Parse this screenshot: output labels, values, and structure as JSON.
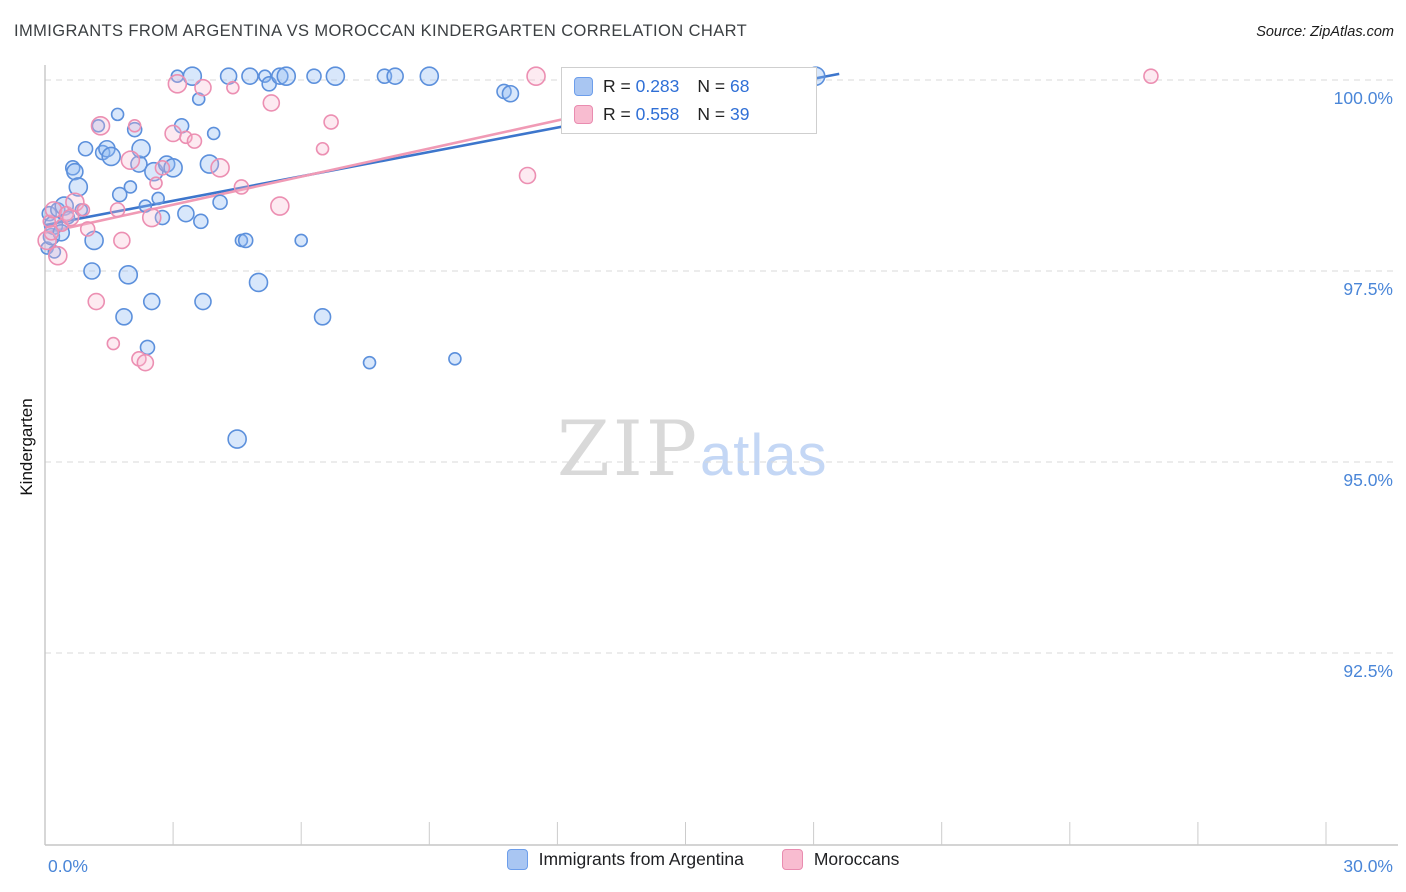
{
  "header": {
    "title": "IMMIGRANTS FROM ARGENTINA VS MOROCCAN KINDERGARTEN CORRELATION CHART",
    "source": "Source: ZipAtlas.com"
  },
  "watermark": {
    "zip": "ZIP",
    "atlas": "atlas"
  },
  "axes": {
    "y_label": "Kindergarten",
    "y_ticks": [
      "100.0%",
      "97.5%",
      "95.0%",
      "92.5%"
    ],
    "x_min_label": "0.0%",
    "x_max_label": "30.0%"
  },
  "legend_box": {
    "series": [
      {
        "r_label": "R = ",
        "r": "0.283",
        "n_label": "N = ",
        "n": "68",
        "color": "#a9c6f2"
      },
      {
        "r_label": "R = ",
        "r": "0.558",
        "n_label": "N = ",
        "n": "39",
        "color": "#f8bcd0"
      }
    ]
  },
  "bottom_legend": [
    {
      "label": "Immigrants from Argentina",
      "color": "#a9c6f2"
    },
    {
      "label": "Moroccans",
      "color": "#f8bcd0"
    }
  ],
  "chart_data": {
    "type": "scatter",
    "title": "IMMIGRANTS FROM ARGENTINA VS MOROCCAN KINDERGARTEN CORRELATION CHART",
    "xlabel": "",
    "ylabel": "Kindergarten",
    "x_range": [
      0,
      30
    ],
    "y_range": [
      90,
      100.3
    ],
    "y_gridlines": [
      100.0,
      97.5,
      95.0,
      92.5
    ],
    "x_tick_values": [
      3,
      6,
      9,
      12,
      15,
      18,
      21,
      24,
      27,
      30
    ],
    "grid": "dashed-horizontal",
    "legend_position": "bottom-center",
    "series": [
      {
        "name": "Immigrants from Argentina",
        "R": 0.283,
        "N": 68,
        "color": "#5c90dc",
        "points": [
          [
            0.05,
            97.8
          ],
          [
            0.1,
            98.25
          ],
          [
            0.15,
            97.95
          ],
          [
            0.2,
            98.1
          ],
          [
            0.22,
            97.75
          ],
          [
            0.3,
            98.3
          ],
          [
            0.38,
            98.0
          ],
          [
            0.45,
            98.35
          ],
          [
            0.55,
            98.2
          ],
          [
            0.65,
            98.85
          ],
          [
            0.7,
            98.8
          ],
          [
            0.78,
            98.6
          ],
          [
            0.85,
            98.3
          ],
          [
            0.95,
            99.1
          ],
          [
            1.1,
            97.5
          ],
          [
            1.15,
            97.9
          ],
          [
            1.25,
            99.4
          ],
          [
            1.35,
            99.05
          ],
          [
            1.45,
            99.1
          ],
          [
            1.55,
            99.0
          ],
          [
            1.7,
            99.55
          ],
          [
            1.75,
            98.5
          ],
          [
            1.85,
            96.9
          ],
          [
            1.95,
            97.45
          ],
          [
            2.0,
            98.6
          ],
          [
            2.1,
            99.35
          ],
          [
            2.2,
            98.9
          ],
          [
            2.25,
            99.1
          ],
          [
            2.35,
            98.35
          ],
          [
            2.4,
            96.5
          ],
          [
            2.5,
            97.1
          ],
          [
            2.55,
            98.8
          ],
          [
            2.65,
            98.45
          ],
          [
            2.75,
            98.2
          ],
          [
            2.85,
            98.9
          ],
          [
            3.0,
            98.85
          ],
          [
            3.1,
            100.05
          ],
          [
            3.2,
            99.4
          ],
          [
            3.3,
            98.25
          ],
          [
            3.45,
            100.05
          ],
          [
            3.6,
            99.75
          ],
          [
            3.65,
            98.15
          ],
          [
            3.7,
            97.1
          ],
          [
            3.85,
            98.9
          ],
          [
            3.95,
            99.3
          ],
          [
            4.1,
            98.4
          ],
          [
            4.3,
            100.05
          ],
          [
            4.5,
            95.3
          ],
          [
            4.6,
            97.9
          ],
          [
            4.7,
            97.9
          ],
          [
            4.8,
            100.05
          ],
          [
            5.0,
            97.35
          ],
          [
            5.15,
            100.05
          ],
          [
            5.25,
            99.95
          ],
          [
            5.5,
            100.05
          ],
          [
            5.65,
            100.05
          ],
          [
            6.0,
            97.9
          ],
          [
            6.3,
            100.05
          ],
          [
            6.5,
            96.9
          ],
          [
            6.8,
            100.05
          ],
          [
            7.6,
            96.3
          ],
          [
            7.95,
            100.05
          ],
          [
            8.2,
            100.05
          ],
          [
            9.0,
            100.05
          ],
          [
            9.6,
            96.35
          ],
          [
            10.75,
            99.85
          ],
          [
            10.9,
            99.82
          ],
          [
            18.05,
            100.05
          ]
        ]
      },
      {
        "name": "Moroccans",
        "R": 0.558,
        "N": 39,
        "color": "#ec8fb2",
        "points": [
          [
            0.05,
            97.9
          ],
          [
            0.1,
            98.15
          ],
          [
            0.15,
            98.0
          ],
          [
            0.2,
            98.3
          ],
          [
            0.3,
            97.7
          ],
          [
            0.4,
            98.1
          ],
          [
            0.5,
            98.25
          ],
          [
            0.6,
            98.2
          ],
          [
            0.7,
            98.4
          ],
          [
            0.9,
            98.3
          ],
          [
            1.0,
            98.05
          ],
          [
            1.2,
            97.1
          ],
          [
            1.3,
            99.4
          ],
          [
            1.6,
            96.55
          ],
          [
            1.7,
            98.3
          ],
          [
            1.8,
            97.9
          ],
          [
            2.0,
            98.95
          ],
          [
            2.1,
            99.4
          ],
          [
            2.2,
            96.35
          ],
          [
            2.35,
            96.3
          ],
          [
            2.5,
            98.2
          ],
          [
            2.6,
            98.65
          ],
          [
            2.75,
            98.85
          ],
          [
            3.0,
            99.3
          ],
          [
            3.1,
            99.95
          ],
          [
            3.3,
            99.25
          ],
          [
            3.5,
            99.2
          ],
          [
            3.7,
            99.9
          ],
          [
            4.1,
            98.85
          ],
          [
            4.4,
            99.9
          ],
          [
            4.6,
            98.6
          ],
          [
            5.3,
            99.7
          ],
          [
            5.5,
            98.35
          ],
          [
            6.5,
            99.1
          ],
          [
            6.7,
            99.45
          ],
          [
            11.3,
            98.75
          ],
          [
            11.5,
            100.05
          ],
          [
            16.0,
            100.05
          ],
          [
            25.9,
            100.05
          ]
        ]
      }
    ],
    "trend_lines": [
      {
        "series": "Immigrants from Argentina",
        "x1": 0,
        "y1": 98.1,
        "x2": 18.6,
        "y2": 100.08,
        "color": "#3d76cc"
      },
      {
        "series": "Moroccans",
        "x1": 0,
        "y1": 98.0,
        "x2": 17.3,
        "y2": 100.12,
        "color": "#f09ab5"
      }
    ]
  }
}
